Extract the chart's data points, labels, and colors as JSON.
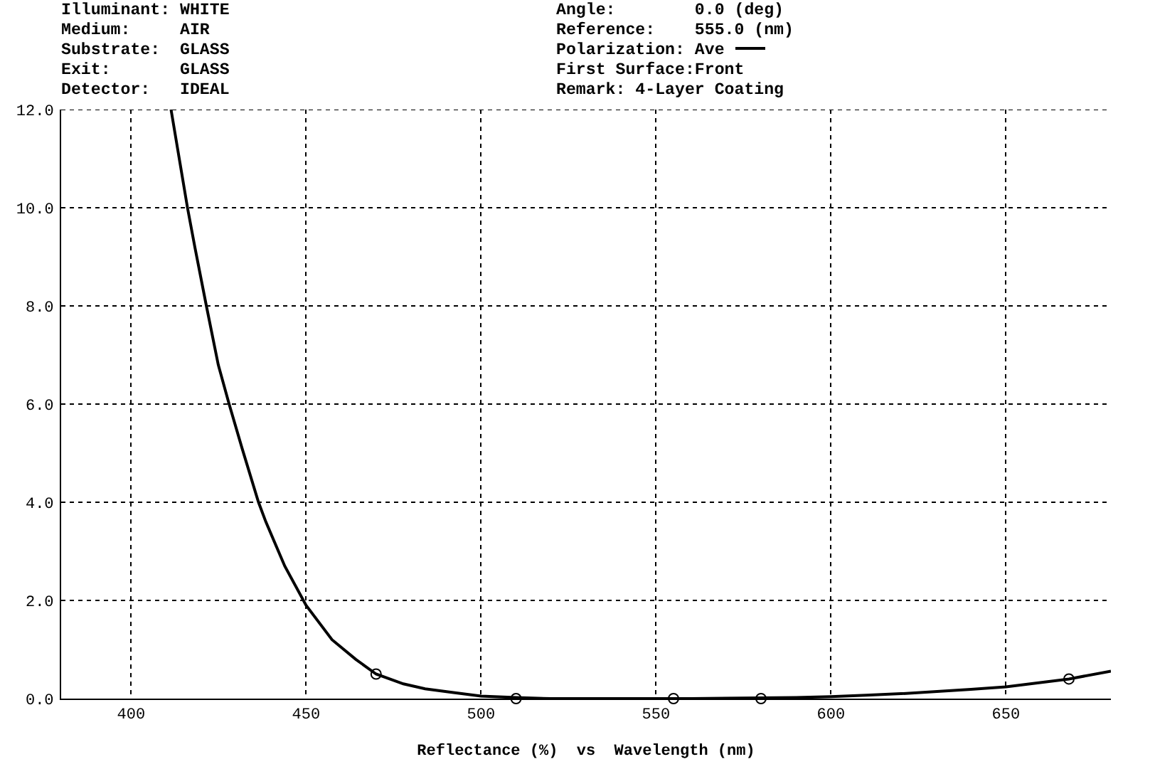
{
  "chart_data": {
    "type": "line",
    "xlabel": "Reflectance (%)  vs  Wavelength (nm)",
    "annotations": [
      "Illuminant: WHITE",
      "Medium:     AIR",
      "Substrate:  GLASS",
      "Exit:       GLASS",
      "Detector:   IDEAL",
      "Angle:        0.0 (deg)",
      "Reference:    555.0 (nm)",
      "Polarization:",
      "First Surface:Front",
      "Remark: 4-Layer Coating"
    ],
    "xlim": [
      380,
      680
    ],
    "xticks": [
      400,
      450,
      500,
      550,
      600,
      650
    ],
    "ylim": [
      0,
      12
    ],
    "yticks": [
      {
        "value": 0,
        "label": "0.0"
      },
      {
        "value": 2,
        "label": "2.0"
      },
      {
        "value": 4,
        "label": "4.0"
      },
      {
        "value": 6,
        "label": "6.0"
      },
      {
        "value": 8,
        "label": "8.0"
      },
      {
        "value": 10,
        "label": "10.0"
      },
      {
        "value": 12,
        "label": "12.0"
      }
    ],
    "grid": true,
    "legend": "top",
    "series": [
      {
        "name": "Ave",
        "color": "#000000",
        "marker": "none",
        "line_style": "solid",
        "x": [
          411.4,
          416.1,
          418.2,
          421.5,
          424.9,
          428.0,
          431.7,
          436.4,
          438.5,
          443.9,
          450.0,
          457.4,
          464.2,
          470.0,
          477.8,
          484.0,
          491.3,
          500.0,
          510.0,
          520.0,
          560.0,
          590.0,
          600.0,
          610.0,
          620.0,
          640.0,
          650.0,
          668.0,
          680.0
        ],
        "values": [
          12.0,
          10.0,
          9.2,
          8.0,
          6.8,
          6.0,
          5.1,
          4.0,
          3.6,
          2.7,
          1.9,
          1.2,
          0.8,
          0.5,
          0.3,
          0.2,
          0.13,
          0.05,
          0.02,
          0.0,
          0.0,
          0.02,
          0.04,
          0.07,
          0.1,
          0.19,
          0.24,
          0.4,
          0.56
        ]
      },
      {
        "type": "scatter",
        "color": "#000000",
        "marker": "circle",
        "x": [
          470,
          510,
          555,
          580,
          668
        ],
        "values": [
          0.5,
          0.0,
          0.0,
          0.0,
          0.4
        ]
      }
    ]
  }
}
